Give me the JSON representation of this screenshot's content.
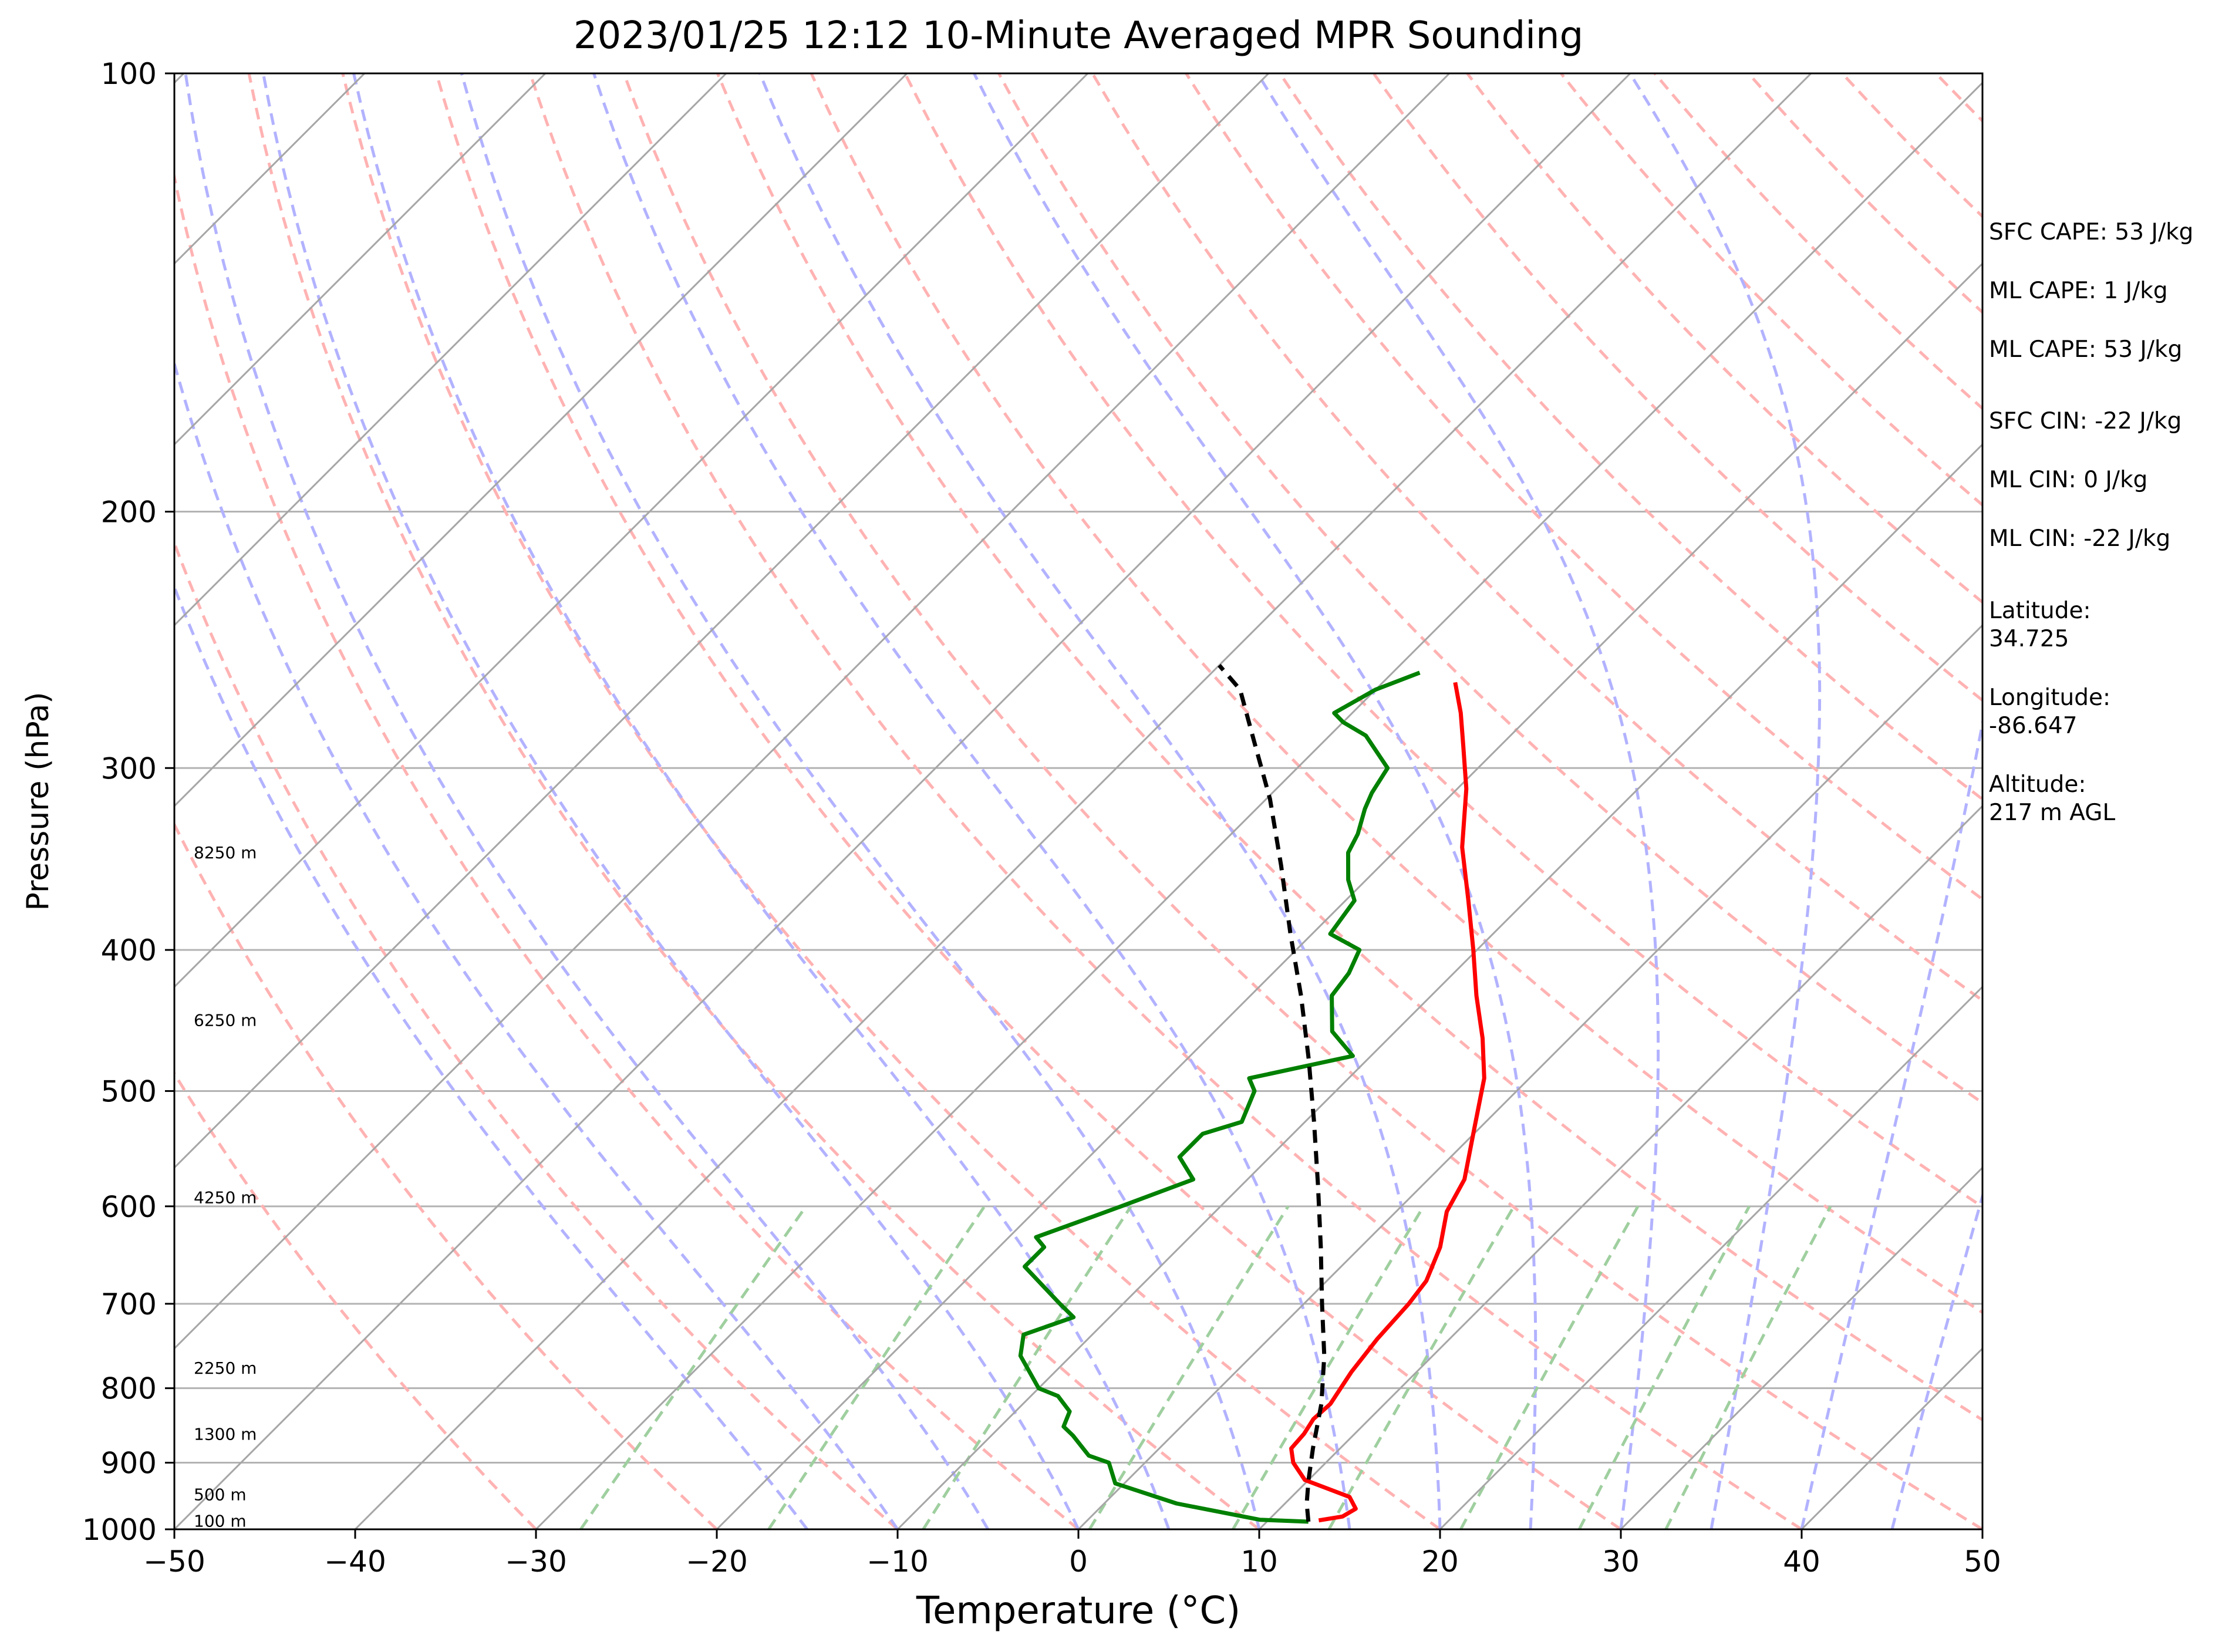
{
  "chart_data": {
    "type": "line",
    "subtype": "skew-T log-P sounding",
    "title": "2023/01/25 12:12 10-Minute Averaged MPR Sounding",
    "xlabel": "Temperature (°C)",
    "ylabel": "Pressure (hPa)",
    "xlim": [
      -50,
      50
    ],
    "ylim": [
      1000,
      100
    ],
    "y_scale": "log",
    "grid": true,
    "x_ticks": [
      -50,
      -40,
      -30,
      -20,
      -10,
      0,
      10,
      20,
      30,
      40,
      50
    ],
    "x_tick_labels": [
      "−50",
      "−40",
      "−30",
      "−20",
      "−10",
      "0",
      "10",
      "20",
      "30",
      "40",
      "50"
    ],
    "y_ticks": [
      1000,
      900,
      800,
      700,
      600,
      500,
      400,
      300,
      200,
      100
    ],
    "y_tick_labels": [
      "1000",
      "900",
      "800",
      "700",
      "600",
      "500",
      "400",
      "300",
      "200",
      "100"
    ],
    "height_labels": [
      {
        "p": 346,
        "text": "8250 m"
      },
      {
        "p": 451,
        "text": "6250 m"
      },
      {
        "p": 597,
        "text": "4250 m"
      },
      {
        "p": 782,
        "text": "2250 m"
      },
      {
        "p": 868,
        "text": "1300 m"
      },
      {
        "p": 955,
        "text": "500 m"
      },
      {
        "p": 996,
        "text": "100 m"
      }
    ],
    "series": [
      {
        "role": "temperature",
        "color": "#ff0000",
        "points": [
          [
            12.8,
            986
          ],
          [
            13.9,
            980
          ],
          [
            14.2,
            968
          ],
          [
            13.2,
            950
          ],
          [
            9.8,
            925
          ],
          [
            8.2,
            900
          ],
          [
            7.3,
            880
          ],
          [
            7.2,
            860
          ],
          [
            6.9,
            840
          ],
          [
            7.0,
            820
          ],
          [
            6.4,
            780
          ],
          [
            6.0,
            740
          ],
          [
            5.8,
            700
          ],
          [
            5.5,
            675
          ],
          [
            4.4,
            640
          ],
          [
            2.8,
            605
          ],
          [
            2.0,
            575
          ],
          [
            -0.3,
            530
          ],
          [
            -2.5,
            490
          ],
          [
            -4.8,
            460
          ],
          [
            -7.5,
            430
          ],
          [
            -10.2,
            400
          ],
          [
            -13.2,
            370
          ],
          [
            -16.5,
            340
          ],
          [
            -19.5,
            310
          ],
          [
            -22.0,
            290
          ],
          [
            -24.0,
            275
          ],
          [
            -26.0,
            262
          ]
        ]
      },
      {
        "role": "dewpoint",
        "color": "#008000",
        "points": [
          [
            12.3,
            988
          ],
          [
            9.5,
            985
          ],
          [
            4.0,
            960
          ],
          [
            -0.5,
            930
          ],
          [
            -2.0,
            900
          ],
          [
            -3.5,
            890
          ],
          [
            -5.5,
            862
          ],
          [
            -6.5,
            850
          ],
          [
            -7.0,
            830
          ],
          [
            -8.5,
            810
          ],
          [
            -10.0,
            800
          ],
          [
            -12.8,
            760
          ],
          [
            -13.8,
            735
          ],
          [
            -12.0,
            715
          ],
          [
            -13.5,
            700
          ],
          [
            -17.5,
            660
          ],
          [
            -17.5,
            640
          ],
          [
            -18.5,
            630
          ],
          [
            -16.5,
            610
          ],
          [
            -15.5,
            600
          ],
          [
            -13.0,
            575
          ],
          [
            -15.0,
            555
          ],
          [
            -15.0,
            535
          ],
          [
            -13.5,
            525
          ],
          [
            -14.5,
            500
          ],
          [
            -15.5,
            490
          ],
          [
            -11.0,
            473
          ],
          [
            -13.5,
            455
          ],
          [
            -15.5,
            430
          ],
          [
            -15.8,
            415
          ],
          [
            -16.5,
            400
          ],
          [
            -19.0,
            390
          ],
          [
            -19.5,
            370
          ],
          [
            -21.0,
            358
          ],
          [
            -22.5,
            343
          ],
          [
            -23.0,
            333
          ],
          [
            -24.0,
            320
          ],
          [
            -24.5,
            312
          ],
          [
            -25.0,
            300
          ],
          [
            -28.0,
            285
          ],
          [
            -30.0,
            279
          ],
          [
            -31.0,
            275
          ],
          [
            -30.0,
            265
          ],
          [
            -28.5,
            258
          ]
        ]
      },
      {
        "role": "parcel-path",
        "color": "#000000",
        "dashed": true,
        "points": [
          [
            12.3,
            988
          ],
          [
            11.2,
            960
          ],
          [
            10.0,
            925
          ],
          [
            8.5,
            880
          ],
          [
            6.5,
            820
          ],
          [
            4.0,
            760
          ],
          [
            1.0,
            700
          ],
          [
            -2.2,
            640
          ],
          [
            -5.8,
            580
          ],
          [
            -9.5,
            525
          ],
          [
            -13.3,
            475
          ],
          [
            -17.2,
            430
          ],
          [
            -21.2,
            390
          ],
          [
            -25.5,
            350
          ],
          [
            -29.8,
            315
          ],
          [
            -33.8,
            288
          ],
          [
            -37.5,
            265
          ],
          [
            -40.0,
            255
          ]
        ]
      }
    ]
  },
  "side_annotations": [
    {
      "key": "sfc_cape",
      "text": "SFC CAPE: 53 J/kg"
    },
    {
      "key": "ml_cape_1",
      "text": "ML CAPE: 1 J/kg"
    },
    {
      "key": "ml_cape_2",
      "text": "ML CAPE: 53 J/kg"
    },
    {
      "key": "sfc_cin",
      "text": "SFC CIN: -22 J/kg"
    },
    {
      "key": "ml_cin_1",
      "text": "ML CIN: 0 J/kg"
    },
    {
      "key": "ml_cin_2",
      "text": "ML CIN: -22 J/kg"
    },
    {
      "key": "latitude_label",
      "text": "Latitude:"
    },
    {
      "key": "latitude_value",
      "text": "34.725"
    },
    {
      "key": "longitude_label",
      "text": "Longitude:"
    },
    {
      "key": "longitude_value",
      "text": "-86.647"
    },
    {
      "key": "altitude_label",
      "text": "Altitude:"
    },
    {
      "key": "altitude_value",
      "text": "217 m AGL"
    }
  ],
  "colors": {
    "isotherm": "#a6a6a6",
    "dry_adiabat": "#ffb2b2",
    "moist_adiabat": "#b2b2ff",
    "mixing_ratio": "#9fcf9f",
    "gridline": "#b3b3b3"
  }
}
